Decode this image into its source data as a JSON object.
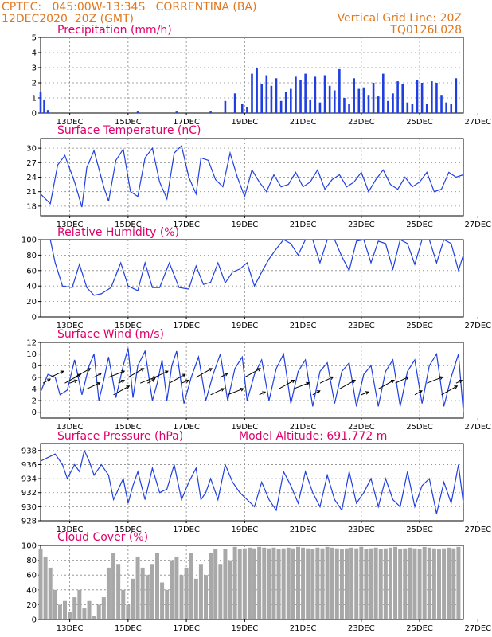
{
  "header": {
    "line1_left": "CPTEC:   045:00W-13:34S   CORRENTINA (BA)",
    "line2_left": "12DEC2020  20Z (GMT)",
    "line1_right": "Vertical Grid Line: 20Z",
    "line2_right": "TQ0126L028"
  },
  "colors": {
    "series": "#1f3fe0",
    "header": "#e07820",
    "title": "#e0006a",
    "cloud": "#a8a8a8",
    "arrow": "#000000"
  },
  "x_axis": {
    "unit": "hours since 12DEC2020 20Z",
    "range": [
      0,
      348
    ],
    "tick_labels": [
      "13DEC",
      "15DEC",
      "17DEC",
      "19DEC",
      "21DEC",
      "23DEC",
      "25DEC",
      "27DEC"
    ],
    "tick_values": [
      24,
      72,
      120,
      168,
      216,
      264,
      312,
      360
    ]
  },
  "chart_data": [
    {
      "type": "bar",
      "title": "Precipitation (mm/h)",
      "ylim": [
        0,
        5
      ],
      "yticks": [
        0,
        1,
        2,
        3,
        4,
        5
      ],
      "series": [
        {
          "x": [
            0,
            3,
            6,
            80,
            112,
            140,
            152,
            160,
            166,
            170,
            174,
            178,
            182,
            186,
            190,
            194,
            198,
            202,
            206,
            210,
            214,
            218,
            222,
            226,
            230,
            234,
            238,
            242,
            246,
            250,
            254,
            258,
            262,
            266,
            270,
            274,
            278,
            282,
            286,
            290,
            294,
            298,
            302,
            306,
            310,
            314,
            318,
            322,
            326,
            330,
            334,
            338,
            342
          ],
          "values": [
            1.4,
            0.9,
            0.2,
            0.1,
            0.1,
            0.1,
            0.8,
            1.3,
            0.6,
            0.4,
            2.6,
            3.0,
            1.9,
            2.5,
            1.8,
            2.3,
            0.8,
            1.4,
            1.6,
            2.4,
            2.2,
            2.6,
            0.9,
            2.4,
            0.7,
            2.5,
            1.8,
            1.5,
            2.9,
            1.0,
            0.6,
            2.3,
            1.6,
            1.7,
            1.2,
            2.0,
            1.1,
            2.6,
            0.8,
            1.3,
            2.1,
            1.9,
            0.7,
            0.6,
            2.2,
            2.0,
            0.6,
            2.1,
            2.0,
            1.2,
            0.7,
            0.6,
            2.3
          ]
        }
      ]
    },
    {
      "type": "line",
      "title": "Surface Temperature (nC)",
      "ylim": [
        16,
        32
      ],
      "yticks": [
        18,
        21,
        24,
        27,
        30
      ],
      "series": [
        {
          "x": [
            0,
            4,
            8,
            14,
            20,
            28,
            34,
            38,
            44,
            52,
            56,
            62,
            68,
            74,
            80,
            86,
            92,
            98,
            104,
            110,
            116,
            122,
            128,
            132,
            138,
            144,
            150,
            156,
            162,
            168,
            174,
            180,
            186,
            192,
            198,
            204,
            210,
            216,
            222,
            228,
            234,
            240,
            246,
            252,
            258,
            264,
            270,
            276,
            282,
            288,
            294,
            300,
            306,
            312,
            318,
            324,
            330,
            336,
            342,
            348
          ],
          "values": [
            20.5,
            19.5,
            18.5,
            26.5,
            28.5,
            23.0,
            17.8,
            26.0,
            29.5,
            22.0,
            19.0,
            27.5,
            29.8,
            21.0,
            20.0,
            28.0,
            30.0,
            23.0,
            19.5,
            29.0,
            30.5,
            24.0,
            20.5,
            28.0,
            27.5,
            23.5,
            22.0,
            29.0,
            24.0,
            20.0,
            25.5,
            23.0,
            21.0,
            24.5,
            22.0,
            22.5,
            25.0,
            22.0,
            23.0,
            25.5,
            21.5,
            23.5,
            24.5,
            22.0,
            23.0,
            25.0,
            21.0,
            23.5,
            25.5,
            22.5,
            21.5,
            24.0,
            22.0,
            23.0,
            25.0,
            21.0,
            21.5,
            25.0,
            24.0,
            24.5
          ]
        }
      ]
    },
    {
      "type": "line",
      "title": "Relative Humidity (%)",
      "ylim": [
        0,
        100
      ],
      "yticks": [
        0,
        20,
        40,
        60,
        80,
        100
      ],
      "series": [
        {
          "x": [
            0,
            8,
            12,
            18,
            26,
            32,
            38,
            44,
            50,
            58,
            66,
            72,
            80,
            86,
            92,
            98,
            106,
            114,
            122,
            128,
            134,
            140,
            146,
            152,
            158,
            164,
            170,
            176,
            182,
            188,
            194,
            200,
            206,
            212,
            218,
            224,
            230,
            236,
            242,
            248,
            254,
            260,
            266,
            272,
            278,
            284,
            290,
            296,
            302,
            308,
            314,
            320,
            326,
            332,
            338,
            344,
            348
          ],
          "values": [
            100,
            100,
            70,
            40,
            38,
            68,
            38,
            28,
            30,
            38,
            70,
            40,
            34,
            70,
            38,
            38,
            70,
            38,
            36,
            66,
            42,
            45,
            70,
            44,
            58,
            62,
            70,
            40,
            58,
            75,
            88,
            100,
            95,
            80,
            100,
            100,
            70,
            100,
            100,
            78,
            60,
            98,
            100,
            70,
            98,
            95,
            62,
            100,
            95,
            68,
            100,
            100,
            70,
            100,
            95,
            60,
            80
          ]
        }
      ]
    },
    {
      "type": "line",
      "title": "Surface Wind (m/s)",
      "ylim": [
        -1,
        12
      ],
      "yticks": [
        0,
        2,
        4,
        6,
        8,
        10,
        12
      ],
      "series": [
        {
          "x": [
            0,
            6,
            12,
            16,
            22,
            28,
            34,
            40,
            44,
            48,
            52,
            56,
            62,
            68,
            72,
            76,
            80,
            86,
            92,
            96,
            100,
            104,
            108,
            112,
            118,
            124,
            130,
            136,
            142,
            148,
            154,
            160,
            166,
            170,
            176,
            182,
            188,
            194,
            200,
            206,
            212,
            218,
            224,
            230,
            236,
            242,
            248,
            254,
            260,
            266,
            272,
            278,
            284,
            290,
            296,
            302,
            308,
            314,
            320,
            326,
            332,
            338,
            344,
            348
          ],
          "values": [
            3.5,
            6.5,
            6.0,
            3.0,
            3.8,
            9.0,
            3.0,
            8.0,
            10.0,
            2.0,
            5.5,
            9.5,
            2.5,
            8.0,
            11.0,
            2.5,
            8.0,
            10.5,
            2.0,
            5.0,
            9.0,
            2.0,
            8.0,
            10.5,
            1.5,
            6.0,
            9.5,
            2.0,
            6.5,
            10.0,
            2.0,
            7.5,
            9.5,
            2.0,
            6.5,
            9.0,
            2.0,
            7.5,
            10.0,
            1.5,
            7.0,
            9.0,
            1.0,
            7.0,
            8.5,
            1.5,
            7.0,
            8.5,
            1.0,
            6.5,
            8.0,
            1.0,
            7.0,
            9.0,
            1.0,
            7.0,
            9.0,
            1.5,
            8.0,
            10.0,
            1.0,
            6.0,
            10.0,
            0.0
          ]
        }
      ],
      "vectors": {
        "x": [
          2,
          8,
          20,
          24,
          28,
          38,
          44,
          56,
          60,
          64,
          72,
          82,
          88,
          94,
          106,
          116,
          128,
          140,
          148,
          154,
          168,
          180,
          196,
          208,
          224,
          230,
          246,
          264,
          278,
          292,
          308,
          318,
          330,
          342
        ],
        "y": [
          5,
          6,
          5,
          5,
          6,
          4,
          6,
          6,
          3,
          5,
          6,
          5,
          5,
          6,
          5,
          5,
          6,
          3,
          6,
          3,
          6,
          3,
          4,
          4,
          3,
          5,
          4,
          3,
          4,
          5,
          3,
          5,
          3,
          5
        ]
      }
    },
    {
      "type": "line",
      "title": "Surface Pressure (hPa)",
      "annotation": "Model Altitude: 691.772 m",
      "ylim": [
        928,
        939
      ],
      "yticks": [
        928,
        930,
        932,
        934,
        936,
        938
      ],
      "series": [
        {
          "x": [
            0,
            6,
            12,
            18,
            22,
            28,
            32,
            36,
            40,
            44,
            50,
            56,
            60,
            64,
            68,
            72,
            76,
            80,
            86,
            92,
            98,
            104,
            110,
            116,
            122,
            128,
            132,
            136,
            140,
            146,
            152,
            158,
            164,
            170,
            176,
            182,
            188,
            194,
            200,
            206,
            212,
            218,
            224,
            230,
            236,
            242,
            248,
            254,
            260,
            266,
            272,
            278,
            284,
            290,
            296,
            302,
            308,
            314,
            320,
            326,
            332,
            338,
            344,
            348
          ],
          "values": [
            936.5,
            937.0,
            937.5,
            936.0,
            934.0,
            936.0,
            935.0,
            938.0,
            936.5,
            934.5,
            936.0,
            934.5,
            931.0,
            932.5,
            934.0,
            930.5,
            933.0,
            935.0,
            931.0,
            935.5,
            932.0,
            932.5,
            936.0,
            931.0,
            933.5,
            935.5,
            931.0,
            932.0,
            934.0,
            931.0,
            936.0,
            933.5,
            932.0,
            931.0,
            930.0,
            933.5,
            931.0,
            929.5,
            935.0,
            933.0,
            930.5,
            935.0,
            932.0,
            930.0,
            934.5,
            931.0,
            929.5,
            935.0,
            930.5,
            932.0,
            934.0,
            930.0,
            934.0,
            931.0,
            930.0,
            935.0,
            930.0,
            933.0,
            934.0,
            929.0,
            933.5,
            930.5,
            936.0,
            930.5
          ]
        }
      ]
    },
    {
      "type": "bar",
      "title": "Cloud Cover (%)",
      "ylim": [
        0,
        100
      ],
      "yticks": [
        0,
        20,
        40,
        60,
        80,
        100
      ],
      "series": [
        {
          "x": [
            0,
            4,
            8,
            12,
            16,
            20,
            24,
            28,
            32,
            36,
            40,
            44,
            48,
            52,
            56,
            60,
            64,
            68,
            72,
            76,
            80,
            84,
            88,
            92,
            96,
            100,
            104,
            108,
            112,
            116,
            120,
            124,
            128,
            132,
            136,
            140,
            144,
            148,
            152,
            156,
            160,
            164,
            168,
            172,
            176,
            180,
            184,
            188,
            192,
            196,
            200,
            204,
            208,
            212,
            216,
            220,
            224,
            228,
            232,
            236,
            240,
            244,
            248,
            252,
            256,
            260,
            264,
            268,
            272,
            276,
            280,
            284,
            288,
            292,
            296,
            300,
            304,
            308,
            312,
            316,
            320,
            324,
            328,
            332,
            336,
            340,
            344
          ],
          "values": [
            95,
            85,
            70,
            40,
            20,
            25,
            10,
            30,
            40,
            15,
            25,
            5,
            20,
            30,
            70,
            90,
            75,
            40,
            20,
            55,
            85,
            70,
            60,
            75,
            90,
            50,
            40,
            80,
            85,
            60,
            70,
            90,
            55,
            75,
            60,
            90,
            95,
            75,
            95,
            80,
            98,
            95,
            96,
            97,
            96,
            98,
            97,
            96,
            97,
            95,
            96,
            97,
            96,
            98,
            97,
            96,
            95,
            97,
            96,
            98,
            97,
            96,
            95,
            96,
            97,
            96,
            98,
            95,
            96,
            97,
            95,
            96,
            97,
            98,
            95,
            96,
            97,
            96,
            95,
            98,
            97,
            96,
            95,
            96,
            97,
            96,
            98
          ]
        }
      ]
    }
  ]
}
